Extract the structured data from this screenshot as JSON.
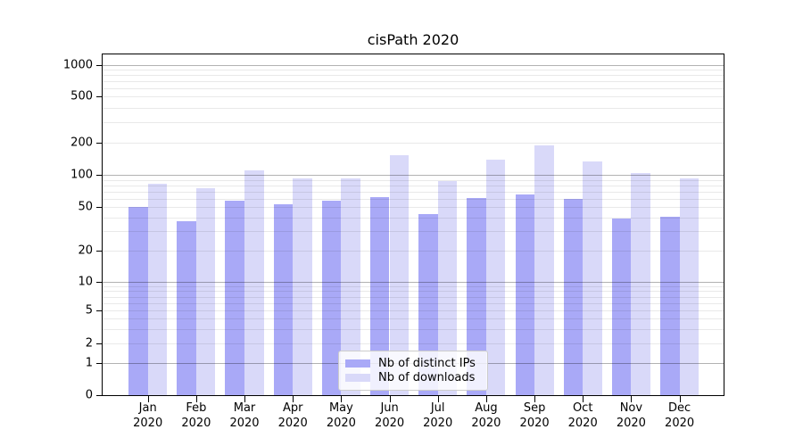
{
  "chart_data": {
    "type": "bar",
    "title": "cisPath 2020",
    "categories": [
      "Jan",
      "Feb",
      "Mar",
      "Apr",
      "May",
      "Jun",
      "Jul",
      "Aug",
      "Sep",
      "Oct",
      "Nov",
      "Dec"
    ],
    "x_year_suffix": "2020",
    "series": [
      {
        "name": "Nb of distinct IPs",
        "color": "#a9a9f7",
        "values": [
          50,
          37,
          57,
          53,
          57,
          62,
          43,
          61,
          66,
          60,
          39,
          41
        ]
      },
      {
        "name": "Nb of downloads",
        "color": "#d9d9f9",
        "values": [
          83,
          75,
          110,
          92,
          92,
          153,
          87,
          139,
          188,
          133,
          105,
          93
        ]
      }
    ],
    "yscale": "log-with-zero-baseline",
    "y_tick_labels": [
      0,
      1,
      2,
      5,
      10,
      20,
      50,
      100,
      200,
      500,
      1000
    ],
    "ylim": [
      0,
      1260
    ],
    "grid": "horizontal, major and minor log gridlines drawn over bars",
    "legend_position": "lower center inside plot",
    "colors": {
      "major_grid": "#b3b3b3",
      "minor_grid": "#ebebeb",
      "spine": "#000000",
      "background": "#ffffff",
      "text": "#000000"
    }
  }
}
